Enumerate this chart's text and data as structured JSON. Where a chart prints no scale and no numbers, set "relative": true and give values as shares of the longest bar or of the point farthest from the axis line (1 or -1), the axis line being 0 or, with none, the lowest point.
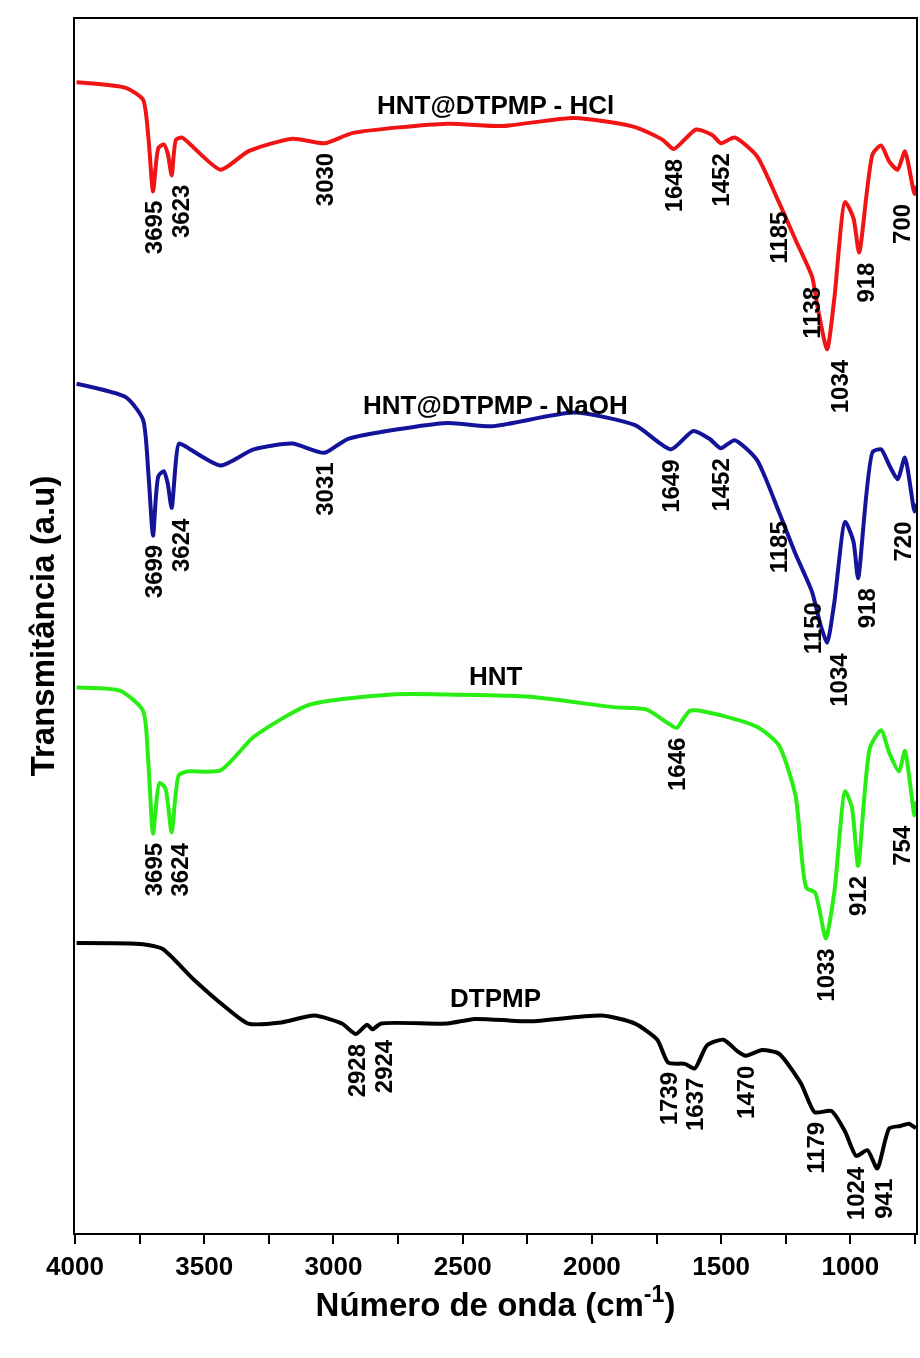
{
  "chart_data": {
    "type": "line",
    "relative": true,
    "xlabel": "Número de onda (cm$^{-1}$)",
    "ylabel": "Transmitância (a.u)",
    "xlim": [
      4000,
      746
    ],
    "xticks": [
      4000,
      {
        "value": 3750,
        "label": null
      },
      3500,
      {
        "value": 3250,
        "label": null
      },
      3000,
      {
        "value": 2750,
        "label": null
      },
      2500,
      {
        "value": 2250,
        "label": null
      },
      2000,
      {
        "value": 1750,
        "label": null
      },
      1500,
      {
        "value": 1250,
        "label": null
      },
      1000,
      {
        "value": 750,
        "label": null
      }
    ],
    "tick_labels": "x",
    "legend": false,
    "marker": "none",
    "line_style": "solid",
    "series": [
      {
        "name": "HNT@DTPMP - HCl",
        "color": "#f01414",
        "x": [
          3994,
          3801,
          3737,
          3716,
          3698,
          3677,
          3656,
          3641,
          3626,
          3609,
          3587,
          3437,
          3330,
          3159,
          3035,
          2924,
          2560,
          2346,
          2068,
          1833,
          1726,
          1683,
          1597,
          1533,
          1501,
          1448,
          1362,
          1277,
          1212,
          1148,
          1127,
          1090,
          1062,
          1020,
          988,
          966,
          913,
          881,
          849,
          817,
          789,
          752,
          746
        ],
        "values": [
          1.0,
          0.995,
          0.985,
          0.952,
          0.905,
          0.943,
          0.946,
          0.938,
          0.919,
          0.95,
          0.952,
          0.924,
          0.94,
          0.951,
          0.947,
          0.956,
          0.964,
          0.962,
          0.969,
          0.961,
          0.95,
          0.942,
          0.959,
          0.954,
          0.947,
          0.952,
          0.936,
          0.896,
          0.863,
          0.831,
          0.805,
          0.768,
          0.812,
          0.896,
          0.882,
          0.852,
          0.938,
          0.945,
          0.931,
          0.924,
          0.94,
          0.903,
          0.91
        ]
      },
      {
        "name": "HNT@DTPMP - NaOH",
        "color": "#14149a",
        "x": [
          3994,
          3801,
          3737,
          3716,
          3698,
          3677,
          3656,
          3641,
          3626,
          3598,
          3576,
          3437,
          3309,
          3159,
          3035,
          2945,
          2560,
          2389,
          2068,
          1833,
          1694,
          1608,
          1544,
          1501,
          1448,
          1362,
          1277,
          1212,
          1148,
          1116,
          1090,
          1062,
          1020,
          988,
          970,
          913,
          881,
          849,
          817,
          789,
          752,
          746
        ],
        "values": [
          0.738,
          0.726,
          0.707,
          0.66,
          0.606,
          0.658,
          0.662,
          0.651,
          0.63,
          0.686,
          0.684,
          0.667,
          0.681,
          0.686,
          0.678,
          0.69,
          0.704,
          0.701,
          0.713,
          0.702,
          0.681,
          0.697,
          0.69,
          0.682,
          0.689,
          0.672,
          0.627,
          0.59,
          0.557,
          0.529,
          0.513,
          0.548,
          0.618,
          0.601,
          0.569,
          0.679,
          0.681,
          0.667,
          0.655,
          0.674,
          0.627,
          0.634
        ]
      },
      {
        "name": "HNT",
        "color": "#28ee14",
        "x": [
          3994,
          3823,
          3737,
          3716,
          3698,
          3673,
          3651,
          3626,
          3598,
          3566,
          3437,
          3309,
          3095,
          2774,
          2560,
          2239,
          1918,
          1790,
          1705,
          1672,
          1619,
          1362,
          1277,
          1212,
          1170,
          1137,
          1095,
          1062,
          1020,
          994,
          970,
          924,
          881,
          849,
          812,
          789,
          752,
          746
        ],
        "values": [
          0.474,
          0.471,
          0.454,
          0.408,
          0.347,
          0.391,
          0.387,
          0.348,
          0.398,
          0.401,
          0.402,
          0.431,
          0.459,
          0.468,
          0.468,
          0.466,
          0.457,
          0.455,
          0.443,
          0.439,
          0.454,
          0.44,
          0.424,
          0.38,
          0.3,
          0.296,
          0.256,
          0.296,
          0.384,
          0.37,
          0.319,
          0.422,
          0.437,
          0.417,
          0.401,
          0.419,
          0.363,
          0.375
        ]
      },
      {
        "name": "DTPMP",
        "color": "#000000",
        "x": [
          3994,
          3737,
          3662,
          3544,
          3416,
          3330,
          3202,
          3074,
          2967,
          2913,
          2870,
          2849,
          2817,
          2560,
          2453,
          2239,
          1961,
          1833,
          1747,
          1705,
          1640,
          1602,
          1555,
          1491,
          1437,
          1405,
          1341,
          1277,
          1191,
          1138,
          1073,
          1020,
          977,
          934,
          896,
          849,
          806,
          774,
          746
        ],
        "values": [
          0.252,
          0.251,
          0.247,
          0.221,
          0.196,
          0.182,
          0.183,
          0.189,
          0.182,
          0.173,
          0.181,
          0.177,
          0.182,
          0.182,
          0.186,
          0.184,
          0.189,
          0.182,
          0.168,
          0.148,
          0.147,
          0.143,
          0.163,
          0.168,
          0.158,
          0.154,
          0.159,
          0.156,
          0.13,
          0.105,
          0.106,
          0.088,
          0.067,
          0.072,
          0.056,
          0.091,
          0.093,
          0.095,
          0.091
        ]
      }
    ],
    "annotations": [
      {
        "text": "3695",
        "x": 3698,
        "y": 0.905
      },
      {
        "text": "3623",
        "x": 3626,
        "y": 0.919
      },
      {
        "text": "3030",
        "x": 3035,
        "y": 0.947
      },
      {
        "text": "1648",
        "x": 1683,
        "y": 0.942
      },
      {
        "text": "1452",
        "x": 1501,
        "y": 0.947
      },
      {
        "text": "1185",
        "x": 1277,
        "y": 0.896
      },
      {
        "text": "1138",
        "x": 1148,
        "y": 0.831
      },
      {
        "text": "1034",
        "x": 1090,
        "y": 0.768
      },
      {
        "text": "918",
        "x": 966,
        "y": 0.852
      },
      {
        "text": "700",
        "x": 752,
        "y": 0.903
      },
      {
        "text": "3699",
        "x": 3698,
        "y": 0.606
      },
      {
        "text": "3624",
        "x": 3626,
        "y": 0.63
      },
      {
        "text": "3031",
        "x": 3035,
        "y": 0.678
      },
      {
        "text": "1649",
        "x": 1694,
        "y": 0.681
      },
      {
        "text": "1452",
        "x": 1501,
        "y": 0.682
      },
      {
        "text": "1185",
        "x": 1277,
        "y": 0.627
      },
      {
        "text": "1150",
        "x": 1148,
        "y": 0.557
      },
      {
        "text": "1034",
        "x": 1090,
        "y": 0.513
      },
      {
        "text": "918",
        "x": 970,
        "y": 0.569
      },
      {
        "text": "720",
        "x": 752,
        "y": 0.627
      },
      {
        "text": "3695",
        "x": 3698,
        "y": 0.347
      },
      {
        "text": "3624",
        "x": 3626,
        "y": 0.348
      },
      {
        "text": "1646",
        "x": 1672,
        "y": 0.439
      },
      {
        "text": "1033",
        "x": 1095,
        "y": 0.256
      },
      {
        "text": "912",
        "x": 970,
        "y": 0.319
      },
      {
        "text": "754",
        "x": 752,
        "y": 0.363
      },
      {
        "text": "2928",
        "x": 2913,
        "y": 0.173
      },
      {
        "text": "2924",
        "x": 2849,
        "y": 0.177
      },
      {
        "text": "1739",
        "x": 1705,
        "y": 0.148
      },
      {
        "text": "1637",
        "x": 1602,
        "y": 0.143
      },
      {
        "text": "1470",
        "x": 1405,
        "y": 0.154
      },
      {
        "text": "1179",
        "x": 1138,
        "y": 0.105
      },
      {
        "text": "1024",
        "x": 977,
        "y": 0.067
      },
      {
        "text": "941",
        "x": 896,
        "y": 0.056
      }
    ]
  }
}
